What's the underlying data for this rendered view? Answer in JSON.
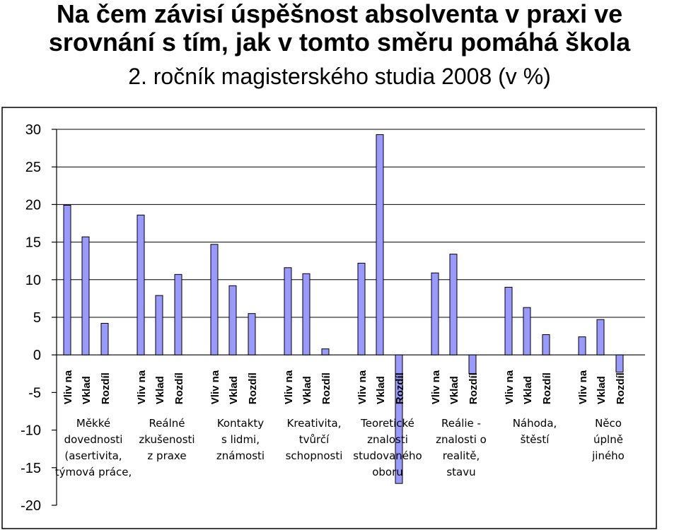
{
  "title_line1": "Na čem závisí úspěšnost absolventa v praxi ve",
  "title_line2": "srovnání s tím, jak v tomto směru pomáhá škola",
  "subtitle": "2. ročník magisterského studia 2008 (v %)",
  "chart_data": {
    "type": "bar",
    "bar_color": "#9999ff",
    "ylim": [
      -20,
      30
    ],
    "yticks": [
      30,
      25,
      20,
      15,
      10,
      5,
      0,
      -5,
      -10,
      -15,
      -20
    ],
    "series_labels": [
      "Vliv na",
      "Vklad",
      "Rozdíl"
    ],
    "groups": [
      {
        "category_lines": [
          "Měkké",
          "dovednosti",
          "(asertivita,",
          "týmová práce,"
        ],
        "values": [
          19.9,
          15.7,
          4.2
        ]
      },
      {
        "category_lines": [
          "Reálné",
          "zkušenosti",
          "z praxe"
        ],
        "values": [
          18.6,
          7.9,
          10.7
        ]
      },
      {
        "category_lines": [
          "Kontakty",
          "s lidmi,",
          "známosti"
        ],
        "values": [
          14.7,
          9.2,
          5.5
        ]
      },
      {
        "category_lines": [
          "Kreativita,",
          "tvůrčí",
          "schopnosti"
        ],
        "values": [
          11.6,
          10.8,
          0.8
        ]
      },
      {
        "category_lines": [
          "Teoretické",
          "znalosti",
          "studovaného",
          "oboru"
        ],
        "values": [
          12.2,
          29.3,
          -17.1
        ]
      },
      {
        "category_lines": [
          "Reálie -",
          "znalosti o",
          "realitě,",
          "stavu"
        ],
        "values": [
          10.9,
          13.4,
          -2.5
        ]
      },
      {
        "category_lines": [
          "Náhoda,",
          "štěstí"
        ],
        "values": [
          9.0,
          6.3,
          2.7
        ]
      },
      {
        "category_lines": [
          "Něco",
          "úplně",
          "jiného"
        ],
        "values": [
          2.4,
          4.7,
          -2.3
        ]
      }
    ]
  }
}
